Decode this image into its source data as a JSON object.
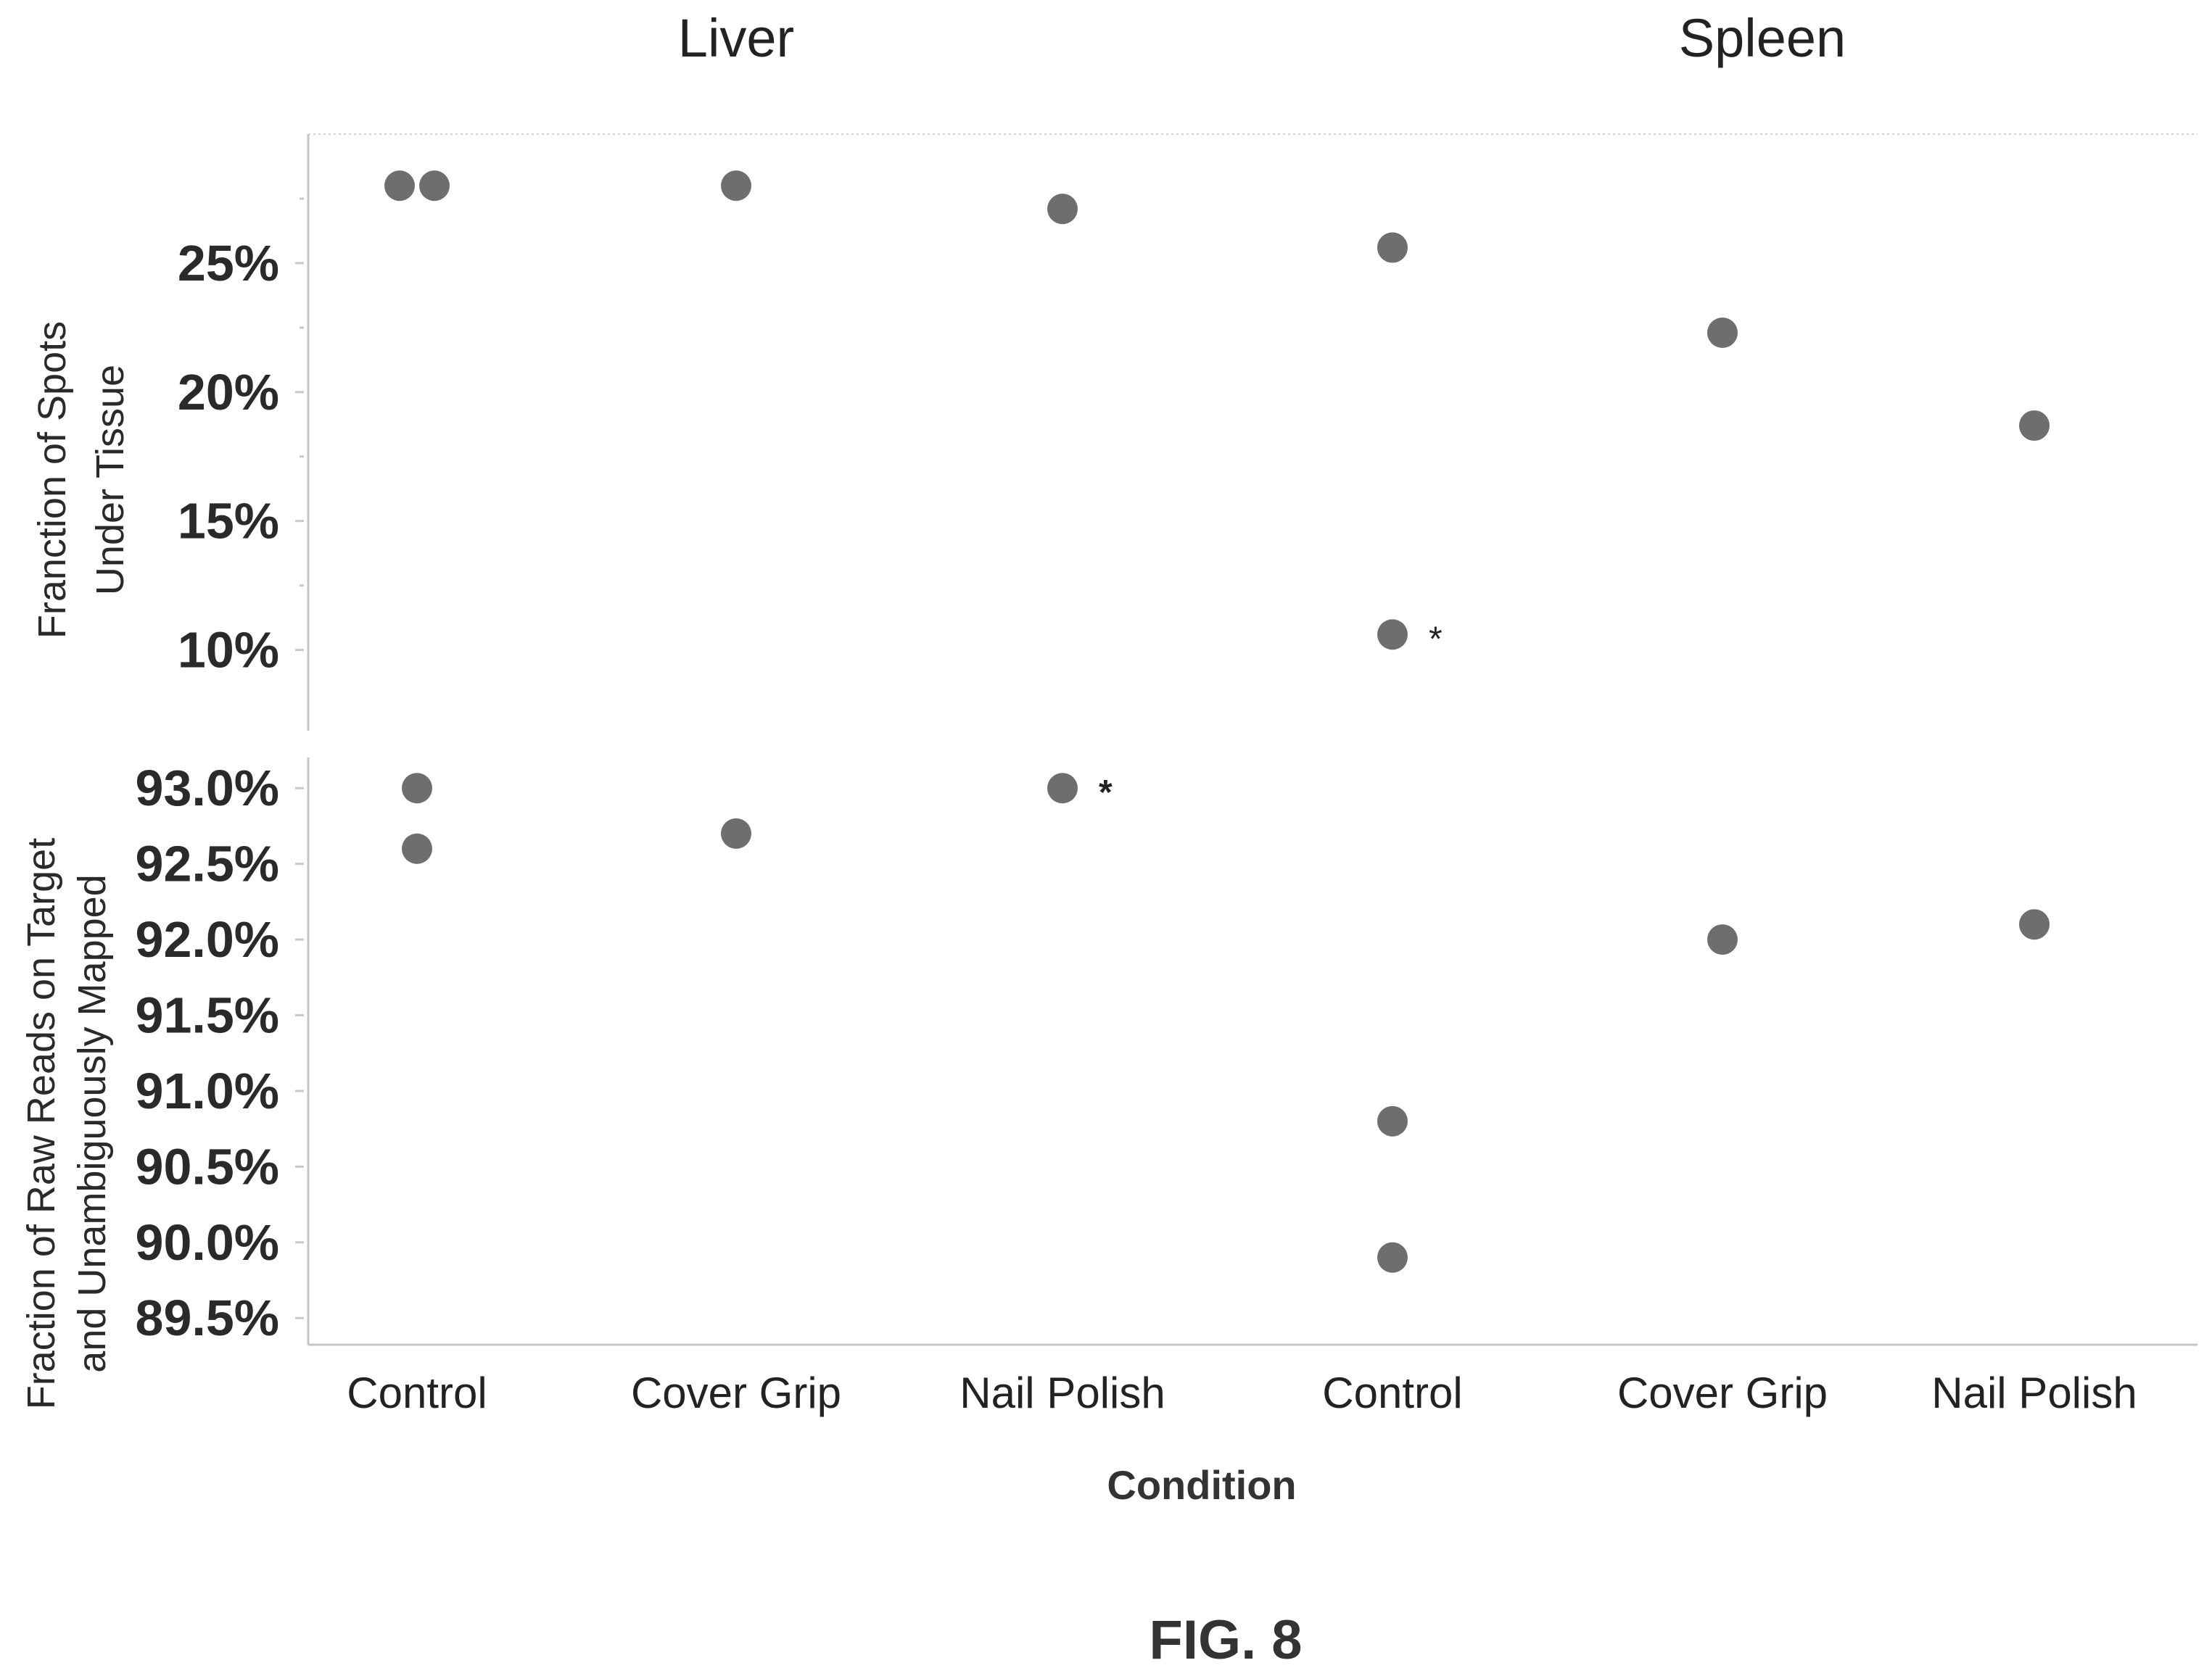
{
  "chart_data": {
    "type": "scatter",
    "layout": "two stacked panels, sharing x categories, split by tissue",
    "groups": [
      "Liver",
      "Spleen"
    ],
    "categories": [
      "Control",
      "Cover Grip",
      "Nail Polish",
      "Control",
      "Cover Grip",
      "Nail Polish"
    ],
    "xlabel": "Condition",
    "grid": false,
    "legend": "none",
    "figure_label": "FIG. 8",
    "panels": [
      {
        "ylabel_lines": [
          "Franction of Spots",
          "Under Tissue"
        ],
        "yticks": [
          "10%",
          "15%",
          "20%",
          "25%"
        ],
        "ytick_values": [
          10,
          15,
          20,
          25
        ],
        "ylim": [
          8.5,
          30
        ],
        "unit": "%",
        "points": [
          {
            "category_index": 0,
            "offset": -1,
            "y": 28.0
          },
          {
            "category_index": 0,
            "offset": 1,
            "y": 28.0
          },
          {
            "category_index": 1,
            "offset": 0,
            "y": 28.0
          },
          {
            "category_index": 2,
            "offset": 0,
            "y": 27.1
          },
          {
            "category_index": 3,
            "offset": 0,
            "y": 25.6
          },
          {
            "category_index": 3,
            "offset": 0,
            "y": 10.6,
            "annotation": "*"
          },
          {
            "category_index": 4,
            "offset": 0,
            "y": 22.3
          },
          {
            "category_index": 5,
            "offset": 0,
            "y": 18.7
          }
        ]
      },
      {
        "ylabel_lines": [
          "Fraction of Raw Reads on Target",
          "and Unambiguously Mapped"
        ],
        "yticks": [
          "89.5%",
          "90.0%",
          "90.5%",
          "91.0%",
          "91.5%",
          "92.0%",
          "92.5%",
          "93.0%"
        ],
        "ytick_values": [
          89.5,
          90.0,
          90.5,
          91.0,
          91.5,
          92.0,
          92.5,
          93.0
        ],
        "ylim": [
          89.3,
          93.25
        ],
        "unit": "%",
        "points": [
          {
            "category_index": 0,
            "offset": 0,
            "y": 93.0
          },
          {
            "category_index": 0,
            "offset": 0,
            "y": 92.6
          },
          {
            "category_index": 1,
            "offset": 0,
            "y": 92.7
          },
          {
            "category_index": 2,
            "offset": 0,
            "y": 93.0,
            "annotation": "*"
          },
          {
            "category_index": 3,
            "offset": 0,
            "y": 90.8
          },
          {
            "category_index": 3,
            "offset": 0,
            "y": 89.9
          },
          {
            "category_index": 4,
            "offset": 0,
            "y": 92.0
          },
          {
            "category_index": 5,
            "offset": 0,
            "y": 92.1
          }
        ]
      }
    ]
  }
}
